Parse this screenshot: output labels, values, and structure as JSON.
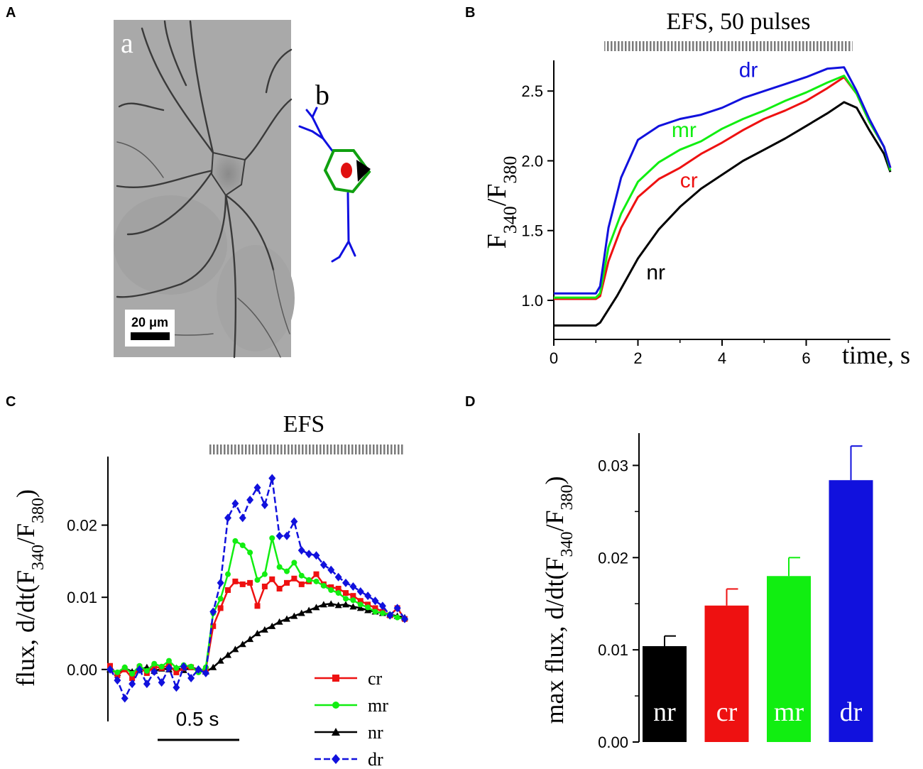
{
  "panels": {
    "A": {
      "label": "A",
      "sublabel_a": "a",
      "sublabel_b": "b",
      "scalebar_text": "20 μm",
      "roi_colors": {
        "dendrites": "#1010e0",
        "membrane": "#10a010",
        "cytosol": "#e01010",
        "nucleus": "#000000"
      }
    },
    "B": {
      "label": "B"
    },
    "C": {
      "label": "C"
    },
    "D": {
      "label": "D"
    }
  },
  "colors": {
    "nr": "#000000",
    "cr": "#ee1111",
    "mr": "#11ee11",
    "dr": "#1111dd",
    "stim": "#888888"
  },
  "chart_data": [
    {
      "id": "B",
      "type": "line",
      "title": "EFS, 50 pulses",
      "xlabel": "time, s",
      "ylabel_main": "F",
      "ylabel_sub1": "340",
      "ylabel_slash": "/F",
      "ylabel_sub2": "380",
      "xlim": [
        0,
        8
      ],
      "ylim": [
        0.72,
        2.72
      ],
      "xticks": [
        0,
        2,
        4,
        6
      ],
      "yticks": [
        1.0,
        1.5,
        2.0,
        2.5
      ],
      "ytick_labels": [
        "1.0",
        "1.5",
        "2.0",
        "2.5"
      ],
      "stim_range": [
        1.2,
        7.1
      ],
      "series": [
        {
          "name": "nr",
          "label": "nr",
          "label_at": [
            2.2,
            1.15
          ],
          "x": [
            0,
            0.5,
            1.0,
            1.1,
            1.5,
            2.0,
            2.5,
            3.0,
            3.5,
            4.0,
            4.5,
            5.0,
            5.5,
            6.0,
            6.5,
            6.9,
            7.2,
            7.5,
            7.85,
            8.0
          ],
          "y": [
            0.82,
            0.82,
            0.82,
            0.84,
            1.03,
            1.3,
            1.51,
            1.67,
            1.8,
            1.9,
            2.0,
            2.08,
            2.16,
            2.25,
            2.34,
            2.42,
            2.38,
            2.22,
            2.05,
            1.92
          ]
        },
        {
          "name": "cr",
          "label": "cr",
          "label_at": [
            3.0,
            1.81
          ],
          "x": [
            0,
            0.5,
            1.0,
            1.1,
            1.3,
            1.6,
            2.0,
            2.5,
            3.0,
            3.5,
            4.0,
            4.5,
            5.0,
            5.5,
            6.0,
            6.5,
            6.9,
            7.2,
            7.5,
            7.85,
            8.0
          ],
          "y": [
            1.01,
            1.01,
            1.01,
            1.03,
            1.28,
            1.52,
            1.74,
            1.87,
            1.95,
            2.05,
            2.13,
            2.22,
            2.3,
            2.36,
            2.43,
            2.52,
            2.6,
            2.48,
            2.28,
            2.1,
            1.95
          ]
        },
        {
          "name": "mr",
          "label": "mr",
          "label_at": [
            2.8,
            2.17
          ],
          "x": [
            0,
            0.5,
            1.0,
            1.1,
            1.3,
            1.6,
            2.0,
            2.5,
            3.0,
            3.5,
            4.0,
            4.5,
            5.0,
            5.5,
            6.0,
            6.5,
            6.9,
            7.2,
            7.5,
            7.85,
            8.0
          ],
          "y": [
            1.02,
            1.02,
            1.02,
            1.05,
            1.38,
            1.62,
            1.85,
            1.99,
            2.08,
            2.14,
            2.23,
            2.3,
            2.36,
            2.43,
            2.49,
            2.56,
            2.61,
            2.48,
            2.28,
            2.1,
            1.93
          ]
        },
        {
          "name": "dr",
          "label": "dr",
          "label_at": [
            4.4,
            2.6
          ],
          "x": [
            0,
            0.5,
            1.0,
            1.1,
            1.3,
            1.6,
            2.0,
            2.5,
            3.0,
            3.5,
            4.0,
            4.5,
            5.0,
            5.5,
            6.0,
            6.5,
            6.9,
            7.2,
            7.5,
            7.85,
            8.0
          ],
          "y": [
            1.05,
            1.05,
            1.05,
            1.1,
            1.52,
            1.88,
            2.15,
            2.25,
            2.3,
            2.33,
            2.38,
            2.45,
            2.5,
            2.55,
            2.6,
            2.66,
            2.67,
            2.5,
            2.3,
            2.1,
            1.95
          ]
        }
      ]
    },
    {
      "id": "C",
      "type": "line",
      "title": "EFS",
      "ylabel_main": "flux, d/dt(F",
      "ylabel_sub1": "340",
      "ylabel_slash": "/F",
      "ylabel_sub2": "380",
      "ylabel_close": ")",
      "time_scalebar": "0.5 s",
      "xlim": [
        0,
        2.0
      ],
      "ylim": [
        -0.0072,
        0.0295
      ],
      "yticks": [
        0.0,
        0.01,
        0.02
      ],
      "ytick_labels": [
        "0.00",
        "0.01",
        "0.02"
      ],
      "stim_range": [
        0.67,
        2.0
      ],
      "legend": [
        "cr",
        "mr",
        "nr",
        "dr"
      ],
      "markers": {
        "cr": "square",
        "mr": "circle",
        "nr": "triangle",
        "dr": "diamond"
      },
      "series": [
        {
          "name": "nr",
          "x": [
            0.0,
            0.05,
            0.1,
            0.15,
            0.2,
            0.25,
            0.3,
            0.35,
            0.4,
            0.45,
            0.5,
            0.55,
            0.6,
            0.65,
            0.7,
            0.75,
            0.8,
            0.85,
            0.9,
            0.95,
            1.0,
            1.05,
            1.1,
            1.15,
            1.2,
            1.25,
            1.3,
            1.35,
            1.4,
            1.45,
            1.5,
            1.55,
            1.6,
            1.65,
            1.7,
            1.75,
            1.8,
            1.85,
            1.9,
            1.95,
            2.0
          ],
          "y": [
            0.0,
            -0.0005,
            0.0002,
            -0.0003,
            0.0,
            0.0003,
            -0.0002,
            0.0001,
            0.0,
            0.0002,
            -0.0001,
            0.0003,
            0.0,
            -0.0003,
            0.0003,
            0.0012,
            0.002,
            0.0028,
            0.0035,
            0.0042,
            0.005,
            0.0055,
            0.006,
            0.0066,
            0.007,
            0.0074,
            0.0078,
            0.0082,
            0.0086,
            0.009,
            0.0091,
            0.0089,
            0.009,
            0.0087,
            0.0085,
            0.0082,
            0.008,
            0.0078,
            0.0076,
            0.0074,
            0.0072
          ]
        },
        {
          "name": "cr",
          "x": [
            0.0,
            0.05,
            0.1,
            0.15,
            0.2,
            0.25,
            0.3,
            0.35,
            0.4,
            0.45,
            0.5,
            0.55,
            0.6,
            0.65,
            0.7,
            0.75,
            0.8,
            0.85,
            0.9,
            0.95,
            1.0,
            1.05,
            1.1,
            1.15,
            1.2,
            1.25,
            1.3,
            1.35,
            1.4,
            1.45,
            1.5,
            1.55,
            1.6,
            1.65,
            1.7,
            1.75,
            1.8,
            1.85,
            1.9,
            1.95,
            2.0
          ],
          "y": [
            0.0005,
            -0.0008,
            0.0,
            -0.0012,
            0.0003,
            -0.0005,
            0.0004,
            0.0002,
            0.0006,
            -0.0004,
            0.0002,
            0.0003,
            -0.0002,
            0.0,
            0.006,
            0.0085,
            0.011,
            0.0122,
            0.0118,
            0.012,
            0.0088,
            0.0115,
            0.0125,
            0.0112,
            0.012,
            0.0126,
            0.0118,
            0.0122,
            0.0132,
            0.0118,
            0.0114,
            0.0112,
            0.0106,
            0.0102,
            0.0095,
            0.009,
            0.0085,
            0.008,
            0.0075,
            0.0085,
            0.007
          ]
        },
        {
          "name": "mr",
          "x": [
            0.0,
            0.05,
            0.1,
            0.15,
            0.2,
            0.25,
            0.3,
            0.35,
            0.4,
            0.45,
            0.5,
            0.55,
            0.6,
            0.65,
            0.7,
            0.75,
            0.8,
            0.85,
            0.9,
            0.95,
            1.0,
            1.05,
            1.1,
            1.15,
            1.2,
            1.25,
            1.3,
            1.35,
            1.4,
            1.45,
            1.5,
            1.55,
            1.6,
            1.65,
            1.7,
            1.75,
            1.8,
            1.85,
            1.9,
            1.95,
            2.0
          ],
          "y": [
            0.0,
            -0.0004,
            0.0003,
            -0.0006,
            0.0005,
            -0.0002,
            0.0008,
            0.0004,
            0.0012,
            0.0002,
            0.0006,
            0.0004,
            -0.0004,
            0.0003,
            0.0078,
            0.0098,
            0.0132,
            0.0178,
            0.0172,
            0.0162,
            0.0124,
            0.0132,
            0.0182,
            0.0142,
            0.0136,
            0.0148,
            0.013,
            0.0124,
            0.0122,
            0.0116,
            0.011,
            0.0106,
            0.0098,
            0.0096,
            0.009,
            0.0086,
            0.008,
            0.0078,
            0.0076,
            0.0072,
            0.007
          ]
        },
        {
          "name": "dr",
          "x": [
            0.0,
            0.05,
            0.1,
            0.15,
            0.2,
            0.25,
            0.3,
            0.35,
            0.4,
            0.45,
            0.5,
            0.55,
            0.6,
            0.65,
            0.7,
            0.75,
            0.8,
            0.85,
            0.9,
            0.95,
            1.0,
            1.05,
            1.1,
            1.15,
            1.2,
            1.25,
            1.3,
            1.35,
            1.4,
            1.45,
            1.5,
            1.55,
            1.6,
            1.65,
            1.7,
            1.75,
            1.8,
            1.85,
            1.9,
            1.95,
            2.0
          ],
          "y": [
            0.0,
            -0.0015,
            -0.004,
            -0.002,
            0.0,
            -0.002,
            -0.0003,
            -0.0018,
            0.0002,
            -0.0025,
            0.0004,
            -0.0012,
            0.0,
            -0.0005,
            0.008,
            0.012,
            0.021,
            0.023,
            0.021,
            0.0235,
            0.0252,
            0.0228,
            0.0265,
            0.0185,
            0.0185,
            0.0205,
            0.0165,
            0.016,
            0.0158,
            0.0145,
            0.0138,
            0.0128,
            0.012,
            0.0115,
            0.0108,
            0.0102,
            0.0095,
            0.0088,
            0.0075,
            0.0085,
            0.007
          ]
        }
      ]
    },
    {
      "id": "D",
      "type": "bar",
      "ylabel_main": "max flux, d/dt(F",
      "ylabel_sub1": "340",
      "ylabel_slash": "/F",
      "ylabel_sub2": "380",
      "ylabel_close": ")",
      "categories": [
        "nr",
        "cr",
        "mr",
        "dr"
      ],
      "values": [
        0.0104,
        0.0148,
        0.018,
        0.0284
      ],
      "errors": [
        0.0011,
        0.0018,
        0.002,
        0.0037
      ],
      "ylim": [
        0,
        0.0335
      ],
      "yticks": [
        0.0,
        0.01,
        0.02,
        0.03
      ],
      "ytick_labels": [
        "0.00",
        "0.01",
        "0.02",
        "0.03"
      ]
    }
  ]
}
